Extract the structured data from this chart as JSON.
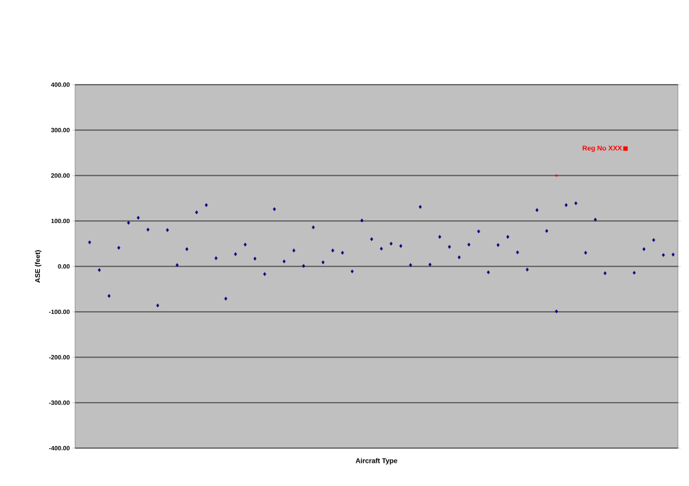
{
  "chart_data": {
    "type": "scatter",
    "xlabel": "Aircraft Type",
    "ylabel": "ASE (feet)",
    "categories": [
      null,
      null,
      null,
      null,
      null,
      null,
      null,
      null,
      null,
      null,
      null,
      null,
      null,
      null,
      null,
      null,
      null,
      null,
      null,
      null,
      null,
      null,
      null,
      null,
      null,
      null,
      null,
      null,
      null,
      null,
      null,
      null,
      null,
      null,
      null,
      null,
      null,
      null,
      null,
      null,
      null,
      null,
      null,
      null,
      null,
      null,
      null,
      null,
      null,
      null,
      null,
      null,
      null,
      null,
      null,
      null,
      null,
      null,
      null,
      null,
      null,
      null
    ],
    "series": [
      {
        "color": "#000080",
        "marker": "diamond",
        "values": [
          null,
          53,
          -8,
          -65,
          41,
          96,
          107,
          81,
          -86,
          80,
          3,
          38,
          119,
          135,
          18,
          -71,
          27,
          48,
          17,
          -17,
          126,
          11,
          35,
          1,
          86,
          9,
          35,
          30,
          -11,
          101,
          60,
          39,
          50,
          45,
          3,
          131,
          4,
          65,
          43,
          20,
          48,
          77,
          -13,
          47,
          65,
          31,
          -7,
          124,
          78,
          -99,
          135,
          139,
          30,
          103,
          -15,
          null,
          null,
          -14,
          38,
          58,
          25,
          26
        ]
      },
      {
        "name": "Reg No XXX",
        "color": "#ff0000",
        "marker": "square",
        "values": [
          null,
          null,
          null,
          null,
          null,
          null,
          null,
          null,
          null,
          null,
          null,
          null,
          null,
          null,
          null,
          null,
          null,
          null,
          null,
          null,
          null,
          null,
          null,
          null,
          null,
          null,
          null,
          null,
          null,
          null,
          null,
          null,
          null,
          null,
          null,
          null,
          null,
          null,
          null,
          null,
          null,
          null,
          null,
          null,
          null,
          null,
          null,
          null,
          null,
          200,
          null,
          null,
          null,
          null,
          null,
          null,
          null,
          null,
          null,
          null,
          null,
          null
        ]
      }
    ],
    "ylim": [
      -400,
      400
    ],
    "yticks": [
      {
        "value": -400,
        "label": "-400.00"
      },
      {
        "value": -300,
        "label": "-300.00"
      },
      {
        "value": -200,
        "label": "-200.00"
      },
      {
        "value": -100,
        "label": "-100.00"
      },
      {
        "value": 0,
        "label": "0.00"
      },
      {
        "value": 100,
        "label": "100.00"
      },
      {
        "value": 200,
        "label": "200.00"
      },
      {
        "value": 300,
        "label": "300.00"
      },
      {
        "value": 400,
        "label": "400.00"
      }
    ],
    "grid": "y",
    "legend": "top right",
    "tick_labels": "y"
  }
}
